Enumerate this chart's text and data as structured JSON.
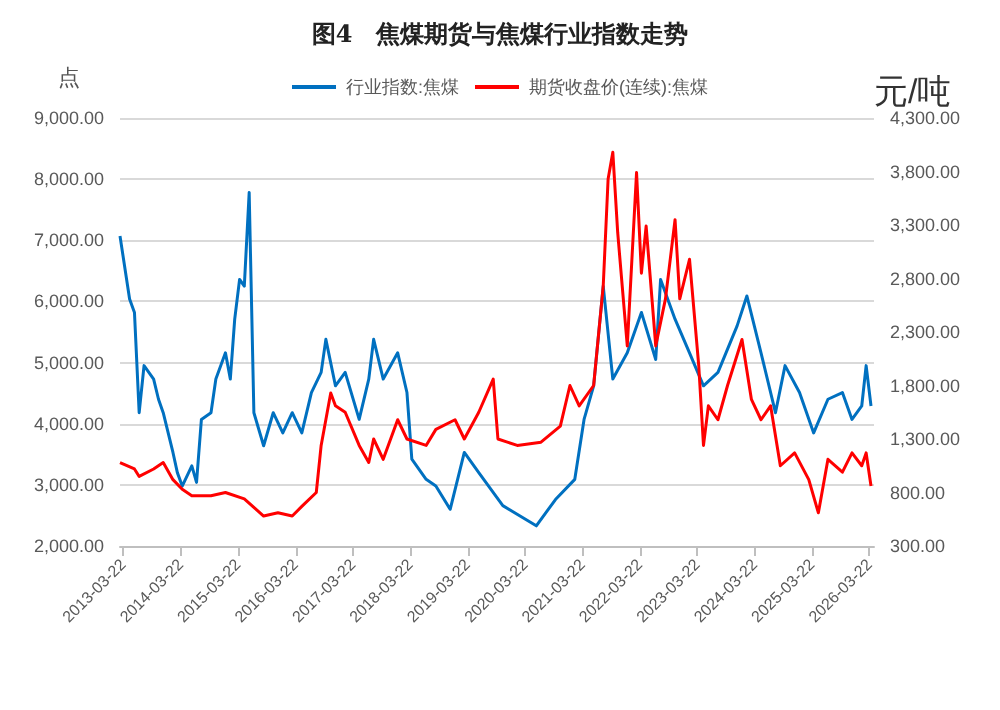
{
  "chart_data": {
    "type": "line",
    "title": "图4　焦煤期货与焦煤行业指数走势",
    "ylabel": "点",
    "y2label": "元/吨",
    "xlim": [
      "2013-03-01",
      "2026-04-20"
    ],
    "xticks": [
      "2013-03-22",
      "2014-03-22",
      "2015-03-22",
      "2016-03-22",
      "2017-03-22",
      "2018-03-22",
      "2019-03-22",
      "2020-03-22",
      "2021-03-22",
      "2022-03-22",
      "2023-03-22",
      "2024-03-22",
      "2025-03-22",
      "2026-03-22"
    ],
    "ylim": [
      2000,
      9000
    ],
    "yticks": [
      {
        "value": 2000,
        "label": "2,000.00"
      },
      {
        "value": 3000,
        "label": "3,000.00"
      },
      {
        "value": 4000,
        "label": "4,000.00"
      },
      {
        "value": 5000,
        "label": "5,000.00"
      },
      {
        "value": 6000,
        "label": "6,000.00"
      },
      {
        "value": 7000,
        "label": "7,000.00"
      },
      {
        "value": 8000,
        "label": "8,000.00"
      },
      {
        "value": 9000,
        "label": "9,000.00"
      }
    ],
    "y2lim": [
      300,
      4300
    ],
    "y2ticks": [
      {
        "value": 300,
        "label": "300.00"
      },
      {
        "value": 800,
        "label": "800.00"
      },
      {
        "value": 1300,
        "label": "1,300.00"
      },
      {
        "value": 1800,
        "label": "1,800.00"
      },
      {
        "value": 2300,
        "label": "2,300.00"
      },
      {
        "value": 2800,
        "label": "2,800.00"
      },
      {
        "value": 3300,
        "label": "3,300.00"
      },
      {
        "value": 3800,
        "label": "3,800.00"
      },
      {
        "value": 4300,
        "label": "4,300.00"
      }
    ],
    "grid": "y",
    "legend": "top",
    "marker": "none",
    "line_style": "solid",
    "series": [
      {
        "name": "行业指数:焦煤",
        "color": "#0070c0",
        "x": [
          "2013-03",
          "2013-05",
          "2013-06",
          "2013-07",
          "2013-08",
          "2013-10",
          "2013-11",
          "2013-12",
          "2014-02",
          "2014-03",
          "2014-04",
          "2014-06",
          "2014-07",
          "2014-08",
          "2014-10",
          "2014-11",
          "2015-01",
          "2015-02",
          "2015-03",
          "2015-04",
          "2015-05",
          "2015-06",
          "2015-07",
          "2015-09",
          "2015-11",
          "2016-01",
          "2016-03",
          "2016-05",
          "2016-07",
          "2016-09",
          "2016-10",
          "2016-12",
          "2017-02",
          "2017-05",
          "2017-07",
          "2017-08",
          "2017-10",
          "2018-01",
          "2018-03",
          "2018-04",
          "2018-07",
          "2018-09",
          "2018-12",
          "2019-03",
          "2019-06",
          "2019-11",
          "2020-06",
          "2020-10",
          "2021-02",
          "2021-04",
          "2021-06",
          "2021-08",
          "2021-10",
          "2022-01",
          "2022-04",
          "2022-07",
          "2022-08",
          "2022-11",
          "2023-02",
          "2023-05",
          "2023-08",
          "2023-12",
          "2024-02",
          "2024-05",
          "2024-08",
          "2024-10",
          "2025-01",
          "2025-04",
          "2025-07",
          "2025-10",
          "2025-12",
          "2026-02",
          "2026-03",
          "2026-04"
        ],
        "values": [
          7070,
          6040,
          5820,
          4180,
          4950,
          4730,
          4400,
          4180,
          3530,
          3200,
          2980,
          3310,
          3040,
          4070,
          4180,
          4730,
          5160,
          4730,
          5710,
          6360,
          6250,
          7780,
          4180,
          3640,
          4180,
          3850,
          4180,
          3850,
          4510,
          4840,
          5380,
          4620,
          4840,
          4070,
          4730,
          5380,
          4730,
          5160,
          4510,
          3420,
          3090,
          2980,
          2600,
          3530,
          3200,
          2660,
          2330,
          2760,
          3090,
          4070,
          4620,
          6250,
          4730,
          5160,
          5820,
          5050,
          6360,
          5710,
          5160,
          4620,
          4840,
          5600,
          6090,
          5160,
          4180,
          4950,
          4510,
          3850,
          4400,
          4510,
          4070,
          4290,
          4950,
          4290
        ]
      },
      {
        "name": "期货收盘价(连续):焦煤",
        "color": "#ff0000",
        "axis": "y2",
        "x": [
          "2013-03",
          "2013-06",
          "2013-07",
          "2013-10",
          "2013-12",
          "2014-02",
          "2014-04",
          "2014-06",
          "2014-10",
          "2015-01",
          "2015-05",
          "2015-09",
          "2015-12",
          "2016-03",
          "2016-05",
          "2016-08",
          "2016-09",
          "2016-11",
          "2016-12",
          "2017-02",
          "2017-05",
          "2017-07",
          "2017-08",
          "2017-10",
          "2018-01",
          "2018-03",
          "2018-07",
          "2018-09",
          "2019-01",
          "2019-03",
          "2019-06",
          "2019-09",
          "2019-10",
          "2020-02",
          "2020-07",
          "2020-11",
          "2021-01",
          "2021-03",
          "2021-06",
          "2021-08",
          "2021-09",
          "2021-10",
          "2021-11",
          "2022-01",
          "2022-03",
          "2022-04",
          "2022-05",
          "2022-07",
          "2022-09",
          "2022-11",
          "2022-12",
          "2023-02",
          "2023-04",
          "2023-05",
          "2023-06",
          "2023-08",
          "2023-10",
          "2024-01",
          "2024-03",
          "2024-05",
          "2024-07",
          "2024-09",
          "2024-12",
          "2025-03",
          "2025-05",
          "2025-07",
          "2025-10",
          "2025-12",
          "2026-02",
          "2026-03",
          "2026-04"
        ],
        "values": [
          1080,
          1020,
          950,
          1020,
          1080,
          920,
          830,
          770,
          770,
          800,
          740,
          580,
          610,
          580,
          670,
          800,
          1240,
          1730,
          1610,
          1550,
          1240,
          1080,
          1300,
          1110,
          1480,
          1300,
          1240,
          1390,
          1480,
          1300,
          1550,
          1860,
          1300,
          1240,
          1270,
          1420,
          1800,
          1610,
          1800,
          2730,
          3730,
          3980,
          3230,
          2170,
          3790,
          2850,
          3290,
          2170,
          2610,
          3350,
          2610,
          2980,
          1980,
          1240,
          1610,
          1480,
          1800,
          2230,
          1670,
          1480,
          1610,
          1050,
          1170,
          920,
          610,
          1110,
          990,
          1170,
          1050,
          1170,
          860
        ]
      }
    ]
  }
}
